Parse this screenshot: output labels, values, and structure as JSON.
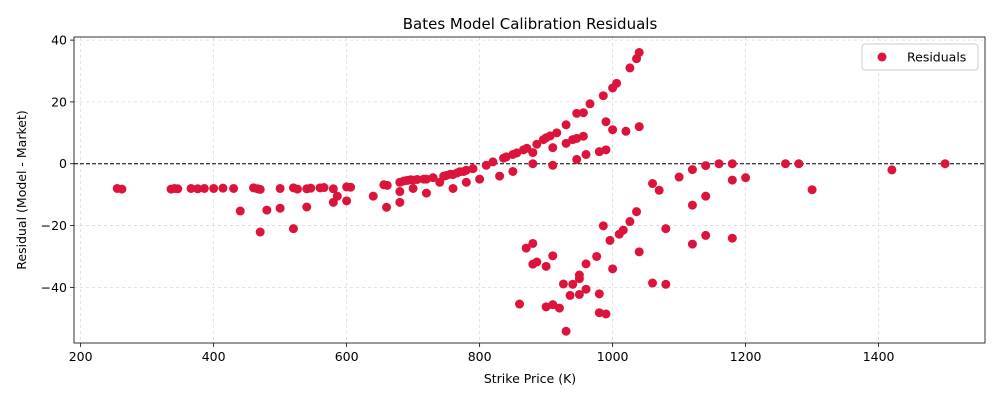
{
  "chart_data": {
    "type": "scatter",
    "title": "Bates Model Calibration Residuals",
    "xlabel": "Strike Price (K)",
    "ylabel": "Residual (Model - Market)",
    "xlim": [
      190,
      1560
    ],
    "ylim": [
      -58,
      41
    ],
    "xticks": [
      200,
      400,
      600,
      800,
      1000,
      1200,
      1400
    ],
    "yticks": [
      -40,
      -20,
      0,
      20,
      40
    ],
    "grid": true,
    "reference_line": {
      "y": 0,
      "style": "dashed",
      "color": "#000000"
    },
    "legend": {
      "position": "top-right",
      "entries": [
        "Residuals"
      ]
    },
    "series": [
      {
        "name": "Residuals",
        "color": "#dc143c",
        "points": [
          [
            255,
            -8
          ],
          [
            262,
            -8.2
          ],
          [
            336,
            -8.2
          ],
          [
            341,
            -8
          ],
          [
            346,
            -8.1
          ],
          [
            366,
            -8
          ],
          [
            376,
            -8.1
          ],
          [
            386,
            -8
          ],
          [
            400,
            -8
          ],
          [
            414,
            -7.9
          ],
          [
            430,
            -8
          ],
          [
            460,
            -7.8
          ],
          [
            466,
            -8.1
          ],
          [
            470,
            -8.3
          ],
          [
            500,
            -8
          ],
          [
            520,
            -7.8
          ],
          [
            526,
            -8.2
          ],
          [
            540,
            -8.1
          ],
          [
            546,
            -7.9
          ],
          [
            560,
            -7.8
          ],
          [
            566,
            -7.7
          ],
          [
            580,
            -8.1
          ],
          [
            586,
            -10.5
          ],
          [
            600,
            -7.5
          ],
          [
            606,
            -7.6
          ],
          [
            656,
            -6.8
          ],
          [
            661,
            -7
          ],
          [
            680,
            -6
          ],
          [
            686,
            -5.6
          ],
          [
            691,
            -5.4
          ],
          [
            696,
            -5.2
          ],
          [
            700,
            -5.3
          ],
          [
            706,
            -5.1
          ],
          [
            716,
            -5
          ],
          [
            720,
            -5
          ],
          [
            730,
            -4.5
          ],
          [
            746,
            -4
          ],
          [
            750,
            -3.8
          ],
          [
            756,
            -3.4
          ],
          [
            760,
            -3.5
          ],
          [
            766,
            -3
          ],
          [
            770,
            -2.6
          ],
          [
            776,
            -2.5
          ],
          [
            780,
            -2.1
          ],
          [
            790,
            -1.6
          ],
          [
            810,
            -0.5
          ],
          [
            820,
            0.6
          ],
          [
            836,
            1.8
          ],
          [
            840,
            2.2
          ],
          [
            850,
            3
          ],
          [
            856,
            3.5
          ],
          [
            866,
            4.5
          ],
          [
            871,
            5
          ],
          [
            880,
            3.6
          ],
          [
            886,
            6.3
          ],
          [
            896,
            7.8
          ],
          [
            900,
            8.4
          ],
          [
            906,
            9
          ],
          [
            916,
            10
          ],
          [
            930,
            12.6
          ],
          [
            940,
            7.8
          ],
          [
            946,
            8.2
          ],
          [
            956,
            8.9
          ],
          [
            946,
            16.3
          ],
          [
            956,
            16.5
          ],
          [
            966,
            19.4
          ],
          [
            986,
            22
          ],
          [
            1000,
            24.5
          ],
          [
            1006,
            26
          ],
          [
            1026,
            31
          ],
          [
            1036,
            34
          ],
          [
            1040,
            36
          ],
          [
            990,
            13.6
          ],
          [
            1000,
            11
          ],
          [
            1020,
            10.5
          ],
          [
            1040,
            12
          ],
          [
            880,
            0
          ],
          [
            910,
            -0.5
          ],
          [
            910,
            5.2
          ],
          [
            930,
            6.6
          ],
          [
            946,
            1.4
          ],
          [
            960,
            3
          ],
          [
            980,
            3.9
          ],
          [
            990,
            4.5
          ],
          [
            800,
            -5
          ],
          [
            830,
            -4
          ],
          [
            850,
            -2.5
          ],
          [
            780,
            -6
          ],
          [
            760,
            -8
          ],
          [
            740,
            -6
          ],
          [
            720,
            -9.5
          ],
          [
            700,
            -8
          ],
          [
            680,
            -9
          ],
          [
            680,
            -12.5
          ],
          [
            660,
            -14.1
          ],
          [
            640,
            -10.5
          ],
          [
            600,
            -12
          ],
          [
            580,
            -12.5
          ],
          [
            540,
            -14
          ],
          [
            500,
            -14.4
          ],
          [
            480,
            -15
          ],
          [
            440,
            -15.3
          ],
          [
            520,
            -21
          ],
          [
            470,
            -22.1
          ],
          [
            1060,
            -6.4
          ],
          [
            1070,
            -8.6
          ],
          [
            1100,
            -4.3
          ],
          [
            1120,
            -1.9
          ],
          [
            1140,
            -0.6
          ],
          [
            1160,
            0
          ],
          [
            1180,
            0
          ],
          [
            1180,
            -5.3
          ],
          [
            1200,
            -4.5
          ],
          [
            1260,
            0
          ],
          [
            1280,
            0
          ],
          [
            1300,
            -8.4
          ],
          [
            1420,
            -2
          ],
          [
            1500,
            0
          ],
          [
            1140,
            -10.5
          ],
          [
            1120,
            -13.4
          ],
          [
            1140,
            -23.2
          ],
          [
            1120,
            -26
          ],
          [
            1180,
            -24.1
          ],
          [
            1080,
            -21
          ],
          [
            1036,
            -15.5
          ],
          [
            1026,
            -18.7
          ],
          [
            1016,
            -21.5
          ],
          [
            1010,
            -22.8
          ],
          [
            986,
            -20.1
          ],
          [
            996,
            -24.8
          ],
          [
            1040,
            -28.5
          ],
          [
            976,
            -30
          ],
          [
            960,
            -32.4
          ],
          [
            1000,
            -34
          ],
          [
            910,
            -29.8
          ],
          [
            880,
            -25.8
          ],
          [
            870,
            -27.3
          ],
          [
            880,
            -32.5
          ],
          [
            886,
            -31.8
          ],
          [
            900,
            -33.2
          ],
          [
            950,
            -36
          ],
          [
            950,
            -37.2
          ],
          [
            940,
            -39
          ],
          [
            926,
            -38.9
          ],
          [
            960,
            -40.6
          ],
          [
            980,
            -42.1
          ],
          [
            936,
            -42.6
          ],
          [
            950,
            -42.3
          ],
          [
            900,
            -46.3
          ],
          [
            910,
            -45.6
          ],
          [
            920,
            -46.7
          ],
          [
            860,
            -45.4
          ],
          [
            980,
            -48.2
          ],
          [
            990,
            -48.6
          ],
          [
            1060,
            -38.6
          ],
          [
            1080,
            -39
          ],
          [
            930,
            -54.2
          ]
        ]
      }
    ]
  }
}
